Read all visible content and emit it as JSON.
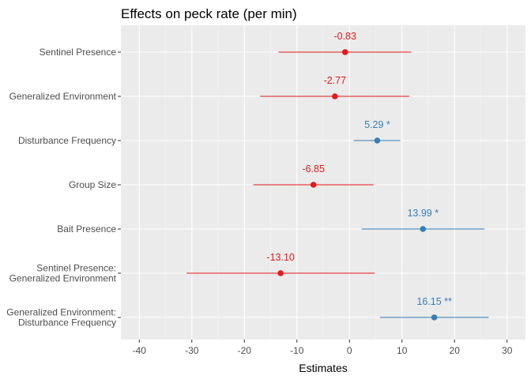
{
  "chart_data": {
    "type": "scatter",
    "subtype": "coefficient-forest-plot",
    "title": "Effects on peck rate (per min)",
    "xlabel": "Estimates",
    "ylabel": "",
    "xlim": [
      -43.5,
      33.5
    ],
    "x_ticks": [
      -40,
      -30,
      -20,
      -10,
      0,
      10,
      20,
      30
    ],
    "x_tick_labels": [
      "-40",
      "-30",
      "-20",
      "-10",
      "0",
      "10",
      "20",
      "30"
    ],
    "grid": true,
    "legend": "none",
    "colors": {
      "negative": "#e41a1c",
      "positive": "#377eb8"
    },
    "terms": [
      {
        "label": [
          "Sentinel Presence"
        ],
        "estimate": -0.83,
        "ci_low": -13.5,
        "ci_high": 11.8,
        "label_text": "-0.83",
        "direction": "negative"
      },
      {
        "label": [
          "Generalized Environment"
        ],
        "estimate": -2.77,
        "ci_low": -17.0,
        "ci_high": 11.4,
        "label_text": "-2.77",
        "direction": "negative"
      },
      {
        "label": [
          "Disturbance Frequency"
        ],
        "estimate": 5.29,
        "ci_low": 0.8,
        "ci_high": 9.7,
        "label_text": "5.29 *",
        "direction": "positive"
      },
      {
        "label": [
          "Group Size"
        ],
        "estimate": -6.85,
        "ci_low": -18.3,
        "ci_high": 4.6,
        "label_text": "-6.85",
        "direction": "negative"
      },
      {
        "label": [
          "Bait Presence"
        ],
        "estimate": 13.99,
        "ci_low": 2.3,
        "ci_high": 25.7,
        "label_text": "13.99 *",
        "direction": "positive"
      },
      {
        "label": [
          "Sentinel Presence:",
          "Generalized Environment"
        ],
        "estimate": -13.1,
        "ci_low": -31.0,
        "ci_high": 4.8,
        "label_text": "-13.10",
        "direction": "negative"
      },
      {
        "label": [
          "Generalized Environment:",
          "Disturbance Frequency"
        ],
        "estimate": 16.15,
        "ci_low": 5.8,
        "ci_high": 26.5,
        "label_text": "16.15 **",
        "direction": "positive"
      }
    ]
  }
}
